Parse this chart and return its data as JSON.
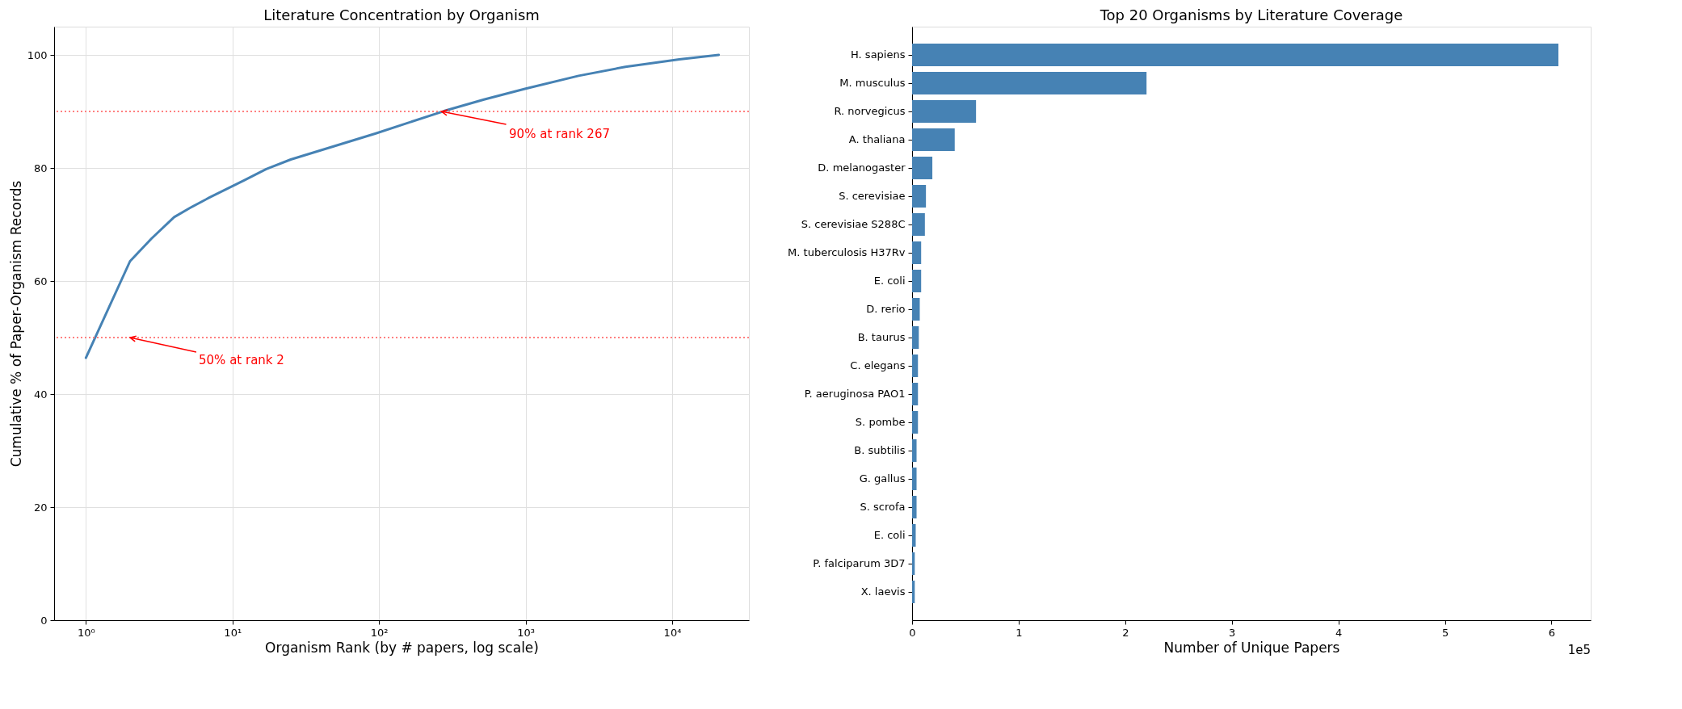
{
  "chart_data": [
    {
      "type": "line",
      "title": "Literature Concentration by Organism",
      "xlabel": "Organism Rank (by # papers, log scale)",
      "ylabel": "Cumulative % of Paper-Organism Records",
      "log": "x",
      "grid": true,
      "x": [
        1,
        2,
        2.8,
        4,
        5.1,
        7,
        12,
        17,
        25,
        50,
        95,
        280,
        520,
        990,
        2300,
        4800,
        11200,
        20800
      ],
      "series": [
        {
          "color": "#4682b4",
          "values": [
            46.4,
            63.5,
            67.5,
            71.3,
            72.9,
            74.8,
            77.8,
            79.8,
            81.5,
            83.9,
            86.1,
            90.1,
            92.1,
            94.0,
            96.3,
            97.9,
            99.2,
            100
          ]
        }
      ],
      "xlim": [
        0.607,
        33400
      ],
      "ylim": [
        0,
        105
      ],
      "xticks": [
        {
          "value": 1,
          "label": "10⁰"
        },
        {
          "value": 10,
          "label": "10¹"
        },
        {
          "value": 100,
          "label": "10²"
        },
        {
          "value": 1000,
          "label": "10³"
        },
        {
          "value": 10000,
          "label": "10⁴"
        }
      ],
      "yticks": [
        0,
        20,
        40,
        60,
        80,
        100
      ],
      "ref_lines": [
        {
          "axis": "y",
          "value": 50,
          "color": "#ff8080",
          "line_style": "dotted"
        },
        {
          "axis": "y",
          "value": 90,
          "color": "#ff8080",
          "line_style": "dotted"
        }
      ],
      "annotations": [
        {
          "text": "50% at rank 2",
          "x": 2,
          "y": 50
        },
        {
          "text": "90% at rank 267",
          "x": 267,
          "y": 90
        }
      ]
    },
    {
      "type": "bar",
      "orientation": "horizontal",
      "title": "Top 20 Organisms by Literature Coverage",
      "xlabel": "Number of Unique Papers",
      "grid": false,
      "categories": [
        "H. sapiens",
        "M. musculus",
        "R. norvegicus",
        "A. thaliana",
        "D. melanogaster",
        "S. cerevisiae",
        "S. cerevisiae S288C",
        "M. tuberculosis H37Rv",
        "E. coli",
        "D. rerio",
        "B. taurus",
        "C. elegans",
        "P. aeruginosa PAO1",
        "S. pombe",
        "B. subtilis",
        "G. gallus",
        "S. scrofa",
        "E. coli",
        "P. falciparum 3D7",
        "X. laevis"
      ],
      "series": [
        {
          "color": "#4682b4",
          "values": [
            6.065,
            2.2,
            0.6,
            0.4,
            0.19,
            0.13,
            0.12,
            0.085,
            0.085,
            0.072,
            0.063,
            0.055,
            0.055,
            0.055,
            0.042,
            0.042,
            0.042,
            0.034,
            0.025,
            0.025
          ]
        }
      ],
      "xlim": [
        0,
        6.368
      ],
      "xticks": [
        0,
        1,
        2,
        3,
        4,
        5,
        6
      ],
      "annotations": [
        "1e5"
      ]
    }
  ]
}
